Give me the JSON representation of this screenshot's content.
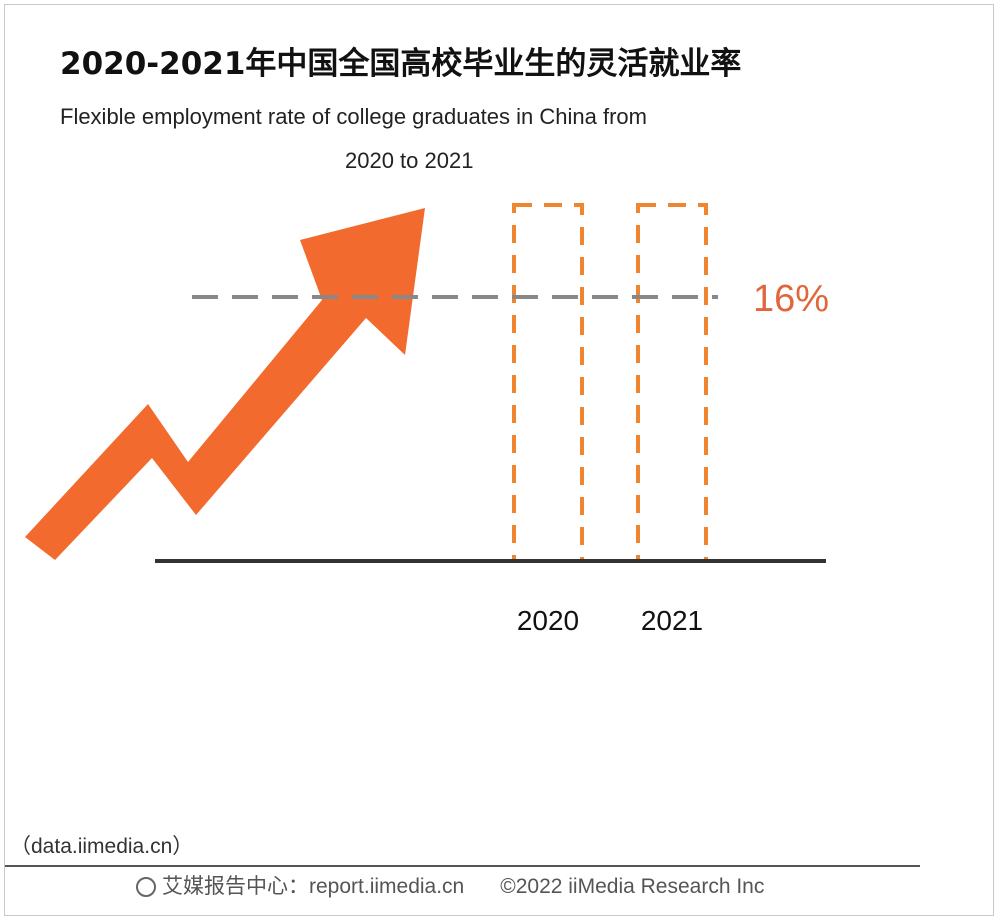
{
  "chart_data": {
    "type": "bar",
    "title": "2020-2021年中国全国高校毕业生的灵活就业率",
    "subtitle_line1": "Flexible employment rate of college graduates in China from",
    "subtitle_line2": "2020 to 2021",
    "categories": [
      "2020",
      "2021"
    ],
    "bar_style": "dashed-outline",
    "reference_line": {
      "value": 16,
      "label": "16%"
    },
    "colors": {
      "arrow": "#f26a2e",
      "bar_outline": "#f0852f",
      "reference": "#888888",
      "label": "#e0663c",
      "axis": "#333333"
    }
  },
  "source": "（data.iimedia.cn）",
  "footer": {
    "brand": "艾媒报告中心：report.iimedia.cn",
    "copyright": "©2022  iiMedia Research  Inc"
  }
}
